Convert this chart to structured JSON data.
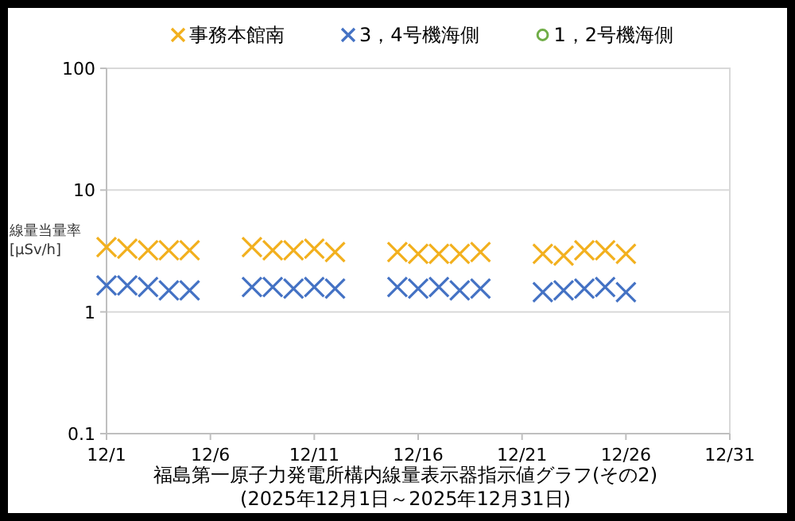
{
  "chart_data": {
    "type": "scatter",
    "title": "福島第一原子力発電所構内線量表示器指示値グラフ(その2)",
    "subtitle": "(2025年12月1日～2025年12月31日)",
    "ylabel": "線量当量率\n[μSv/h]",
    "x": [
      "--12-01",
      "--12-02",
      "--12-03",
      "--12-04",
      "--12-05",
      "--12-08",
      "--12-09",
      "--12-10",
      "--12-11",
      "--12-12",
      "--12-15",
      "--12-16",
      "--12-17",
      "--12-18",
      "--12-19",
      "--12-22",
      "--12-23",
      "--12-24",
      "--12-25",
      "--12-26"
    ],
    "series": [
      {
        "name": "事務本館南",
        "color": "#f2b01e",
        "marker": "cross",
        "values": [
          3.4,
          3.3,
          3.2,
          3.2,
          3.2,
          3.4,
          3.2,
          3.2,
          3.3,
          3.1,
          3.1,
          3.0,
          3.0,
          3.0,
          3.1,
          3.0,
          2.9,
          3.2,
          3.2,
          3.0
        ]
      },
      {
        "name": "3，4号機海側",
        "color": "#4472c4",
        "marker": "cross",
        "values": [
          1.65,
          1.65,
          1.6,
          1.5,
          1.5,
          1.6,
          1.6,
          1.55,
          1.6,
          1.55,
          1.6,
          1.55,
          1.6,
          1.5,
          1.55,
          1.45,
          1.5,
          1.55,
          1.6,
          1.45
        ]
      },
      {
        "name": "1，2号機海側",
        "color": "#70ad47",
        "marker": "circle",
        "values": [
          null,
          null,
          null,
          null,
          null,
          null,
          null,
          null,
          null,
          null,
          null,
          null,
          null,
          null,
          null,
          null,
          null,
          null,
          null,
          null
        ]
      }
    ],
    "xlim": [
      "--12-01",
      "--12-31"
    ],
    "xticks": [
      {
        "value": "--12-01",
        "label": "12/1"
      },
      {
        "value": "--12-06",
        "label": "12/6"
      },
      {
        "value": "--12-11",
        "label": "12/11"
      },
      {
        "value": "--12-16",
        "label": "12/16"
      },
      {
        "value": "--12-21",
        "label": "12/21"
      },
      {
        "value": "--12-26",
        "label": "12/26"
      },
      {
        "value": "--12-31",
        "label": "12/31"
      }
    ],
    "ylim": [
      0.1,
      100
    ],
    "yticks": [
      0.1,
      1,
      10,
      100
    ],
    "log": true,
    "grid": "y",
    "legend": "top"
  }
}
